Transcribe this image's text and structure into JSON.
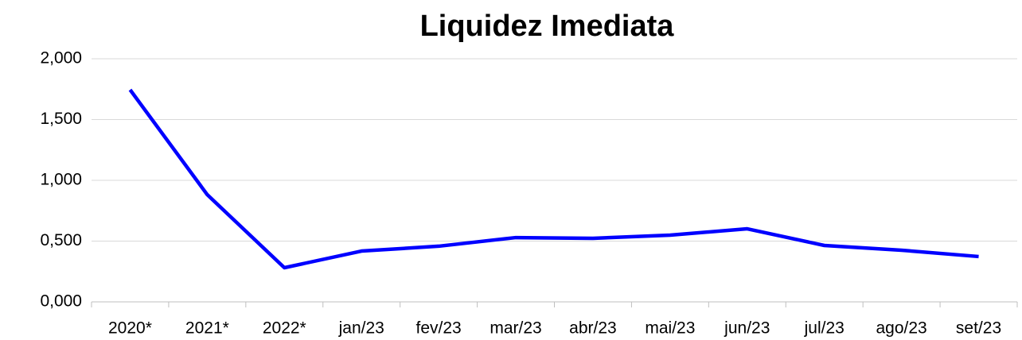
{
  "chart_data": {
    "type": "line",
    "title": "Liquidez Imediata",
    "categories": [
      "2020*",
      "2021*",
      "2022*",
      "jan/23",
      "fev/23",
      "mar/23",
      "abr/23",
      "mai/23",
      "jun/23",
      "jul/23",
      "ago/23",
      "set/23"
    ],
    "series": [
      {
        "name": "Liquidez Imediata",
        "color": "#0000ff",
        "values": [
          1.745,
          0.882,
          0.281,
          0.418,
          0.458,
          0.529,
          0.523,
          0.549,
          0.601,
          0.464,
          0.425,
          0.373
        ]
      }
    ],
    "ylim": [
      0,
      2
    ],
    "yticks": [
      {
        "value": 0,
        "label": "0,000"
      },
      {
        "value": 0.5,
        "label": "0,500"
      },
      {
        "value": 1,
        "label": "1,000"
      },
      {
        "value": 1.5,
        "label": "1,500"
      },
      {
        "value": 2,
        "label": "2,000"
      }
    ],
    "grid": true
  }
}
